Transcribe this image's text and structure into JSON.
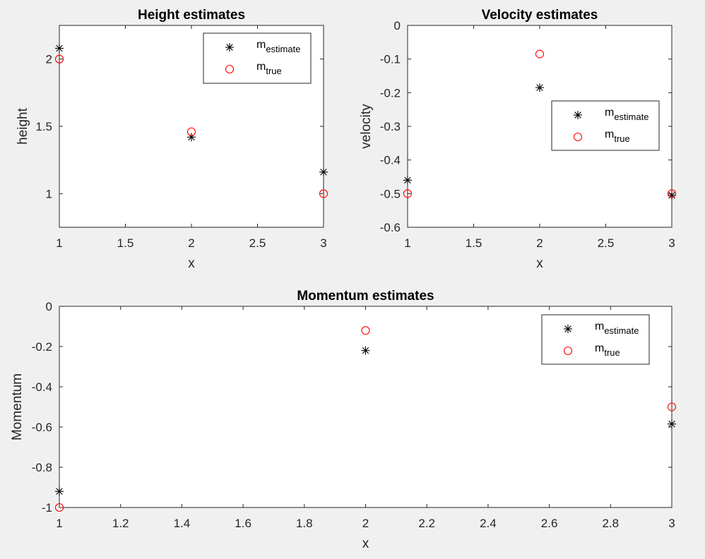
{
  "chart_data": [
    {
      "id": "height",
      "type": "scatter",
      "title": "Height estimates",
      "xlabel": "x",
      "ylabel": "height",
      "xlim": [
        1,
        3
      ],
      "ylim": [
        0.75,
        2.25
      ],
      "xticks": [
        1,
        1.5,
        2,
        2.5,
        3
      ],
      "xtick_labels": [
        "1",
        "1.5",
        "2",
        "2.5",
        "3"
      ],
      "yticks": [
        1,
        1.5,
        2
      ],
      "ytick_labels": [
        "1",
        "1.5",
        "2"
      ],
      "legend_position": "top-right",
      "series": [
        {
          "name": "m_estimate",
          "label_main": "m",
          "label_sub": "estimate",
          "marker": "asterisk",
          "color": "#000000",
          "x": [
            1,
            2,
            3
          ],
          "y": [
            2.08,
            1.42,
            1.16
          ]
        },
        {
          "name": "m_true",
          "label_main": "m",
          "label_sub": "true",
          "marker": "circle",
          "color": "#ff0000",
          "x": [
            1,
            2,
            3
          ],
          "y": [
            2.0,
            1.46,
            1.0
          ]
        }
      ]
    },
    {
      "id": "velocity",
      "type": "scatter",
      "title": "Velocity estimates",
      "xlabel": "x",
      "ylabel": "velocity",
      "xlim": [
        1,
        3
      ],
      "ylim": [
        -0.6,
        0
      ],
      "xticks": [
        1,
        1.5,
        2,
        2.5,
        3
      ],
      "xtick_labels": [
        "1",
        "1.5",
        "2",
        "2.5",
        "3"
      ],
      "yticks": [
        -0.6,
        -0.5,
        -0.4,
        -0.3,
        -0.2,
        -0.1,
        0
      ],
      "ytick_labels": [
        "-0.6",
        "-0.5",
        "-0.4",
        "-0.3",
        "-0.2",
        "-0.1",
        "0"
      ],
      "legend_position": "right",
      "series": [
        {
          "name": "m_estimate",
          "label_main": "m",
          "label_sub": "estimate",
          "marker": "asterisk",
          "color": "#000000",
          "x": [
            1,
            2,
            3
          ],
          "y": [
            -0.46,
            -0.185,
            -0.505
          ]
        },
        {
          "name": "m_true",
          "label_main": "m",
          "label_sub": "true",
          "marker": "circle",
          "color": "#ff0000",
          "x": [
            1,
            2,
            3
          ],
          "y": [
            -0.5,
            -0.085,
            -0.5
          ]
        }
      ]
    },
    {
      "id": "momentum",
      "type": "scatter",
      "title": "Momentum estimates",
      "xlabel": "x",
      "ylabel": "Momentum",
      "xlim": [
        1,
        3
      ],
      "ylim": [
        -1,
        0
      ],
      "xticks": [
        1,
        1.2,
        1.4,
        1.6,
        1.8,
        2,
        2.2,
        2.4,
        2.6,
        2.8,
        3
      ],
      "xtick_labels": [
        "1",
        "1.2",
        "1.4",
        "1.6",
        "1.8",
        "2",
        "2.2",
        "2.4",
        "2.6",
        "2.8",
        "3"
      ],
      "yticks": [
        -1,
        -0.8,
        -0.6,
        -0.4,
        -0.2,
        0
      ],
      "ytick_labels": [
        "-1",
        "-0.8",
        "-0.6",
        "-0.4",
        "-0.2",
        "0"
      ],
      "legend_position": "top-right",
      "series": [
        {
          "name": "m_estimate",
          "label_main": "m",
          "label_sub": "estimate",
          "marker": "asterisk",
          "color": "#000000",
          "x": [
            1,
            2,
            3
          ],
          "y": [
            -0.92,
            -0.22,
            -0.585
          ]
        },
        {
          "name": "m_true",
          "label_main": "m",
          "label_sub": "true",
          "marker": "circle",
          "color": "#ff0000",
          "x": [
            1,
            2,
            3
          ],
          "y": [
            -1.0,
            -0.12,
            -0.5
          ]
        }
      ]
    }
  ]
}
